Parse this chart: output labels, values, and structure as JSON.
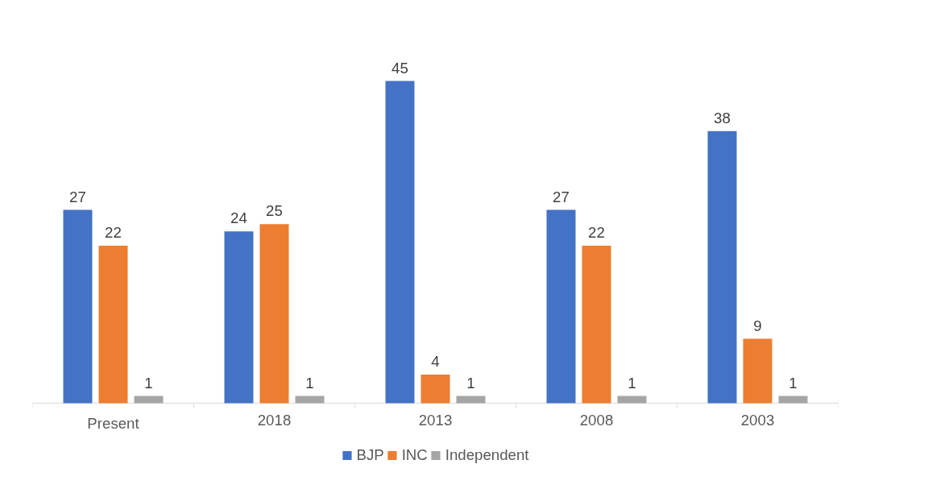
{
  "chart_data": {
    "type": "bar",
    "categories": [
      "Present",
      "2018",
      "2013",
      "2008",
      "2003"
    ],
    "series": [
      {
        "name": "BJP",
        "color": "#4472c4",
        "values": [
          27,
          24,
          45,
          27,
          38
        ]
      },
      {
        "name": "INC",
        "color": "#ed7d31",
        "values": [
          22,
          25,
          4,
          22,
          9
        ]
      },
      {
        "name": "Independent",
        "color": "#a5a5a5",
        "values": [
          1,
          1,
          1,
          1,
          1
        ]
      }
    ],
    "data_labels": true,
    "grid": false,
    "legend": "bottom"
  }
}
